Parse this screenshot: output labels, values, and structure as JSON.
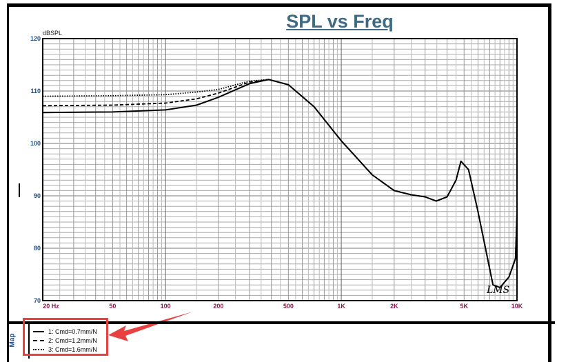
{
  "chart_data": {
    "type": "line",
    "title": "SPL vs Freq",
    "ylabel": "dBSPL",
    "xlabel": "",
    "xscale": "log",
    "xlim": [
      20,
      10000
    ],
    "ylim": [
      70,
      120
    ],
    "grid": true,
    "xticks": [
      {
        "v": 20,
        "label": "20 Hz"
      },
      {
        "v": 50,
        "label": "50"
      },
      {
        "v": 100,
        "label": "100"
      },
      {
        "v": 200,
        "label": "200"
      },
      {
        "v": 500,
        "label": "500"
      },
      {
        "v": 1000,
        "label": "1K"
      },
      {
        "v": 2000,
        "label": "2K"
      },
      {
        "v": 5000,
        "label": "5K"
      },
      {
        "v": 10000,
        "label": "10K"
      }
    ],
    "yticks": [
      {
        "v": 70,
        "label": "70"
      },
      {
        "v": 80,
        "label": "80"
      },
      {
        "v": 90,
        "label": "90"
      },
      {
        "v": 100,
        "label": "100"
      },
      {
        "v": 110,
        "label": "110"
      },
      {
        "v": 120,
        "label": "120"
      }
    ],
    "legend_position": "bottom-left",
    "legend_panel_label": "Map",
    "annotation": "LMS",
    "series": [
      {
        "name": "1: Cmd=0.7mm/N",
        "style": "solid",
        "x": [
          20,
          50,
          100,
          150,
          200,
          300,
          386,
          500,
          700,
          1000,
          1500,
          2000,
          2500,
          3000,
          3470,
          4000,
          4500,
          4800,
          5300,
          6000,
          7000,
          7300,
          8000,
          9000,
          9800,
          10000
        ],
        "y": [
          105.9,
          106,
          106.4,
          107.3,
          108.8,
          111.4,
          112.2,
          111.2,
          107,
          100.5,
          94,
          91,
          90.2,
          89.8,
          89,
          89.8,
          93,
          96.6,
          95,
          87,
          76,
          73,
          72.5,
          74.5,
          78,
          86.6
        ]
      },
      {
        "name": "2: Cmd=1.2mm/N",
        "style": "dashed",
        "x": [
          20,
          50,
          100,
          150,
          200,
          300,
          386,
          500,
          700,
          1000,
          1500,
          2000,
          2500,
          3000,
          3470,
          4000,
          4500,
          4800,
          5300,
          6000,
          7000,
          7300,
          8000,
          9000,
          9800,
          10000
        ],
        "y": [
          107.2,
          107.3,
          107.7,
          108.5,
          109.6,
          111.7,
          112.2,
          111.2,
          107,
          100.5,
          94,
          91,
          90.2,
          89.8,
          89,
          89.8,
          93,
          96.6,
          95,
          87,
          76,
          73,
          72.5,
          74.5,
          78,
          86.6
        ]
      },
      {
        "name": "3: Cmd=1.6mm/N",
        "style": "dotted",
        "x": [
          20,
          50,
          100,
          150,
          200,
          300,
          386,
          500,
          700,
          1000,
          1500,
          2000,
          2500,
          3000,
          3470,
          4000,
          4500,
          4800,
          5300,
          6000,
          7000,
          7300,
          8000,
          9000,
          9800,
          10000
        ],
        "y": [
          109,
          109.1,
          109.3,
          109.8,
          110.3,
          111.9,
          112.2,
          111.2,
          107,
          100.5,
          94,
          91,
          90.2,
          89.8,
          89,
          89.8,
          93,
          96.6,
          95,
          87,
          76,
          73,
          72.5,
          74.5,
          78,
          86.6
        ]
      }
    ]
  },
  "colors": {
    "title": "#3f6a84",
    "ytick": "#1e4d8c",
    "xtick": "#8b1a4a",
    "highlight": "#e8403f"
  }
}
